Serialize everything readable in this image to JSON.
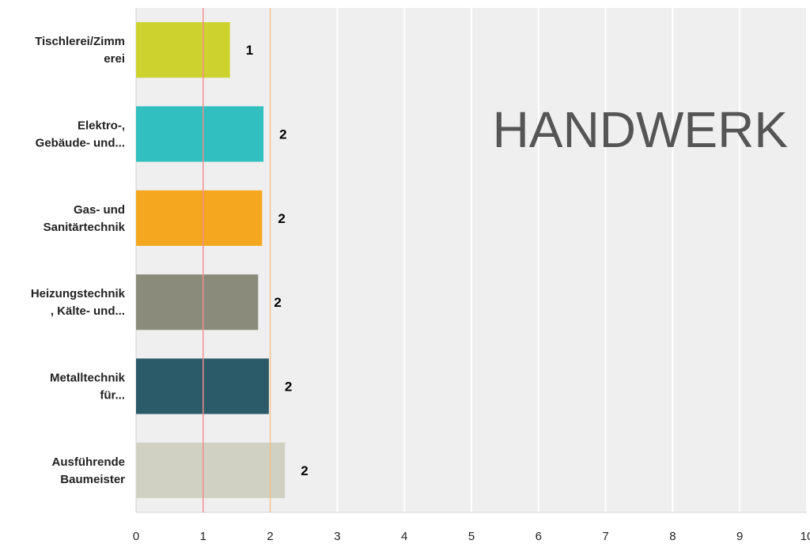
{
  "overlay": {
    "title": "HANDWERK"
  },
  "chart_data": {
    "type": "bar",
    "orientation": "horizontal",
    "categories": [
      [
        "Tischlerei/Zimm",
        "erei"
      ],
      [
        "Elektro-,",
        "Gebäude- und..."
      ],
      [
        "Gas- und",
        "Sanitärtechnik"
      ],
      [
        "Heizungstechnik",
        ", Kälte- und..."
      ],
      [
        "Metalltechnik",
        "für..."
      ],
      [
        "Ausführende",
        "Baumeister"
      ]
    ],
    "values": [
      1.4,
      1.9,
      1.88,
      1.82,
      1.98,
      2.22
    ],
    "data_labels": [
      "1",
      "2",
      "2",
      "2",
      "2",
      "2"
    ],
    "colors": [
      "#cdd22e",
      "#32bfbf",
      "#f5a81f",
      "#8b8b7b",
      "#2b5a69",
      "#d1d1c3"
    ],
    "xlim": [
      0,
      10
    ],
    "xticks": [
      "0",
      "1",
      "2",
      "3",
      "4",
      "5",
      "6",
      "7",
      "8",
      "9",
      "10"
    ],
    "reference_lines": [
      {
        "value": 1,
        "color": "#f08c8c"
      },
      {
        "value": 2,
        "color": "#f2c08c"
      }
    ],
    "grid": true,
    "background": "#efefef",
    "legend": "none"
  }
}
